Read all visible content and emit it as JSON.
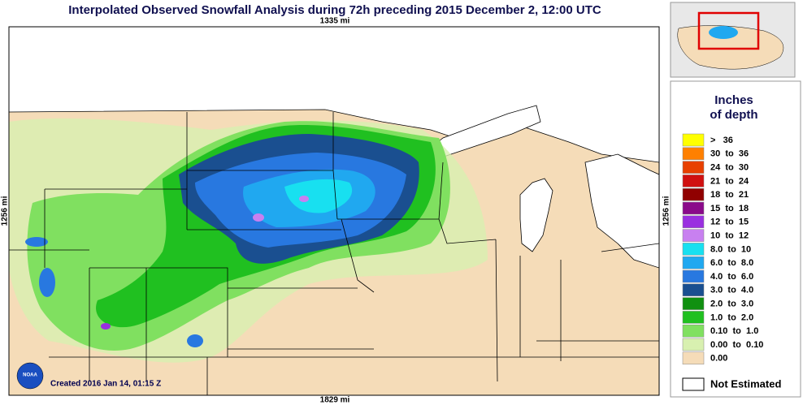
{
  "title": "Interpolated Observed Snowfall Analysis during 72h preceding 2015 December 2, 12:00 UTC",
  "scale": {
    "top": "1335 mi",
    "left": "1256 mi",
    "right": "1256 mi",
    "bottom": "1829 mi"
  },
  "created": "Created 2016 Jan 14, 01:15 Z",
  "logo": "NOAA",
  "legend": {
    "title_line1": "Inches",
    "title_line2": "of depth",
    "items": [
      {
        "color": "#ffff00",
        "label": ">   36"
      },
      {
        "color": "#ff8000",
        "label": "30  to  36"
      },
      {
        "color": "#e84000",
        "label": "24  to  30"
      },
      {
        "color": "#d01010",
        "label": "21  to  24"
      },
      {
        "color": "#900000",
        "label": "18  to  21"
      },
      {
        "color": "#8a0a8a",
        "label": "15  to  18"
      },
      {
        "color": "#9a30e0",
        "label": "12  to  15"
      },
      {
        "color": "#c880f0",
        "label": "10  to  12"
      },
      {
        "color": "#18e0f0",
        "label": "8.0  to  10"
      },
      {
        "color": "#20a8f0",
        "label": "6.0  to  8.0"
      },
      {
        "color": "#2878e0",
        "label": "4.0  to  6.0"
      },
      {
        "color": "#1a4f90",
        "label": "3.0  to  4.0"
      },
      {
        "color": "#109010",
        "label": "2.0  to  3.0"
      },
      {
        "color": "#20c020",
        "label": "1.0  to  2.0"
      },
      {
        "color": "#80e060",
        "label": "0.10  to  1.0"
      },
      {
        "color": "#d8f0b0",
        "label": "0.00  to  0.10"
      },
      {
        "color": "#f5dcb8",
        "label": "0.00"
      }
    ],
    "not_estimated": "Not Estimated"
  }
}
